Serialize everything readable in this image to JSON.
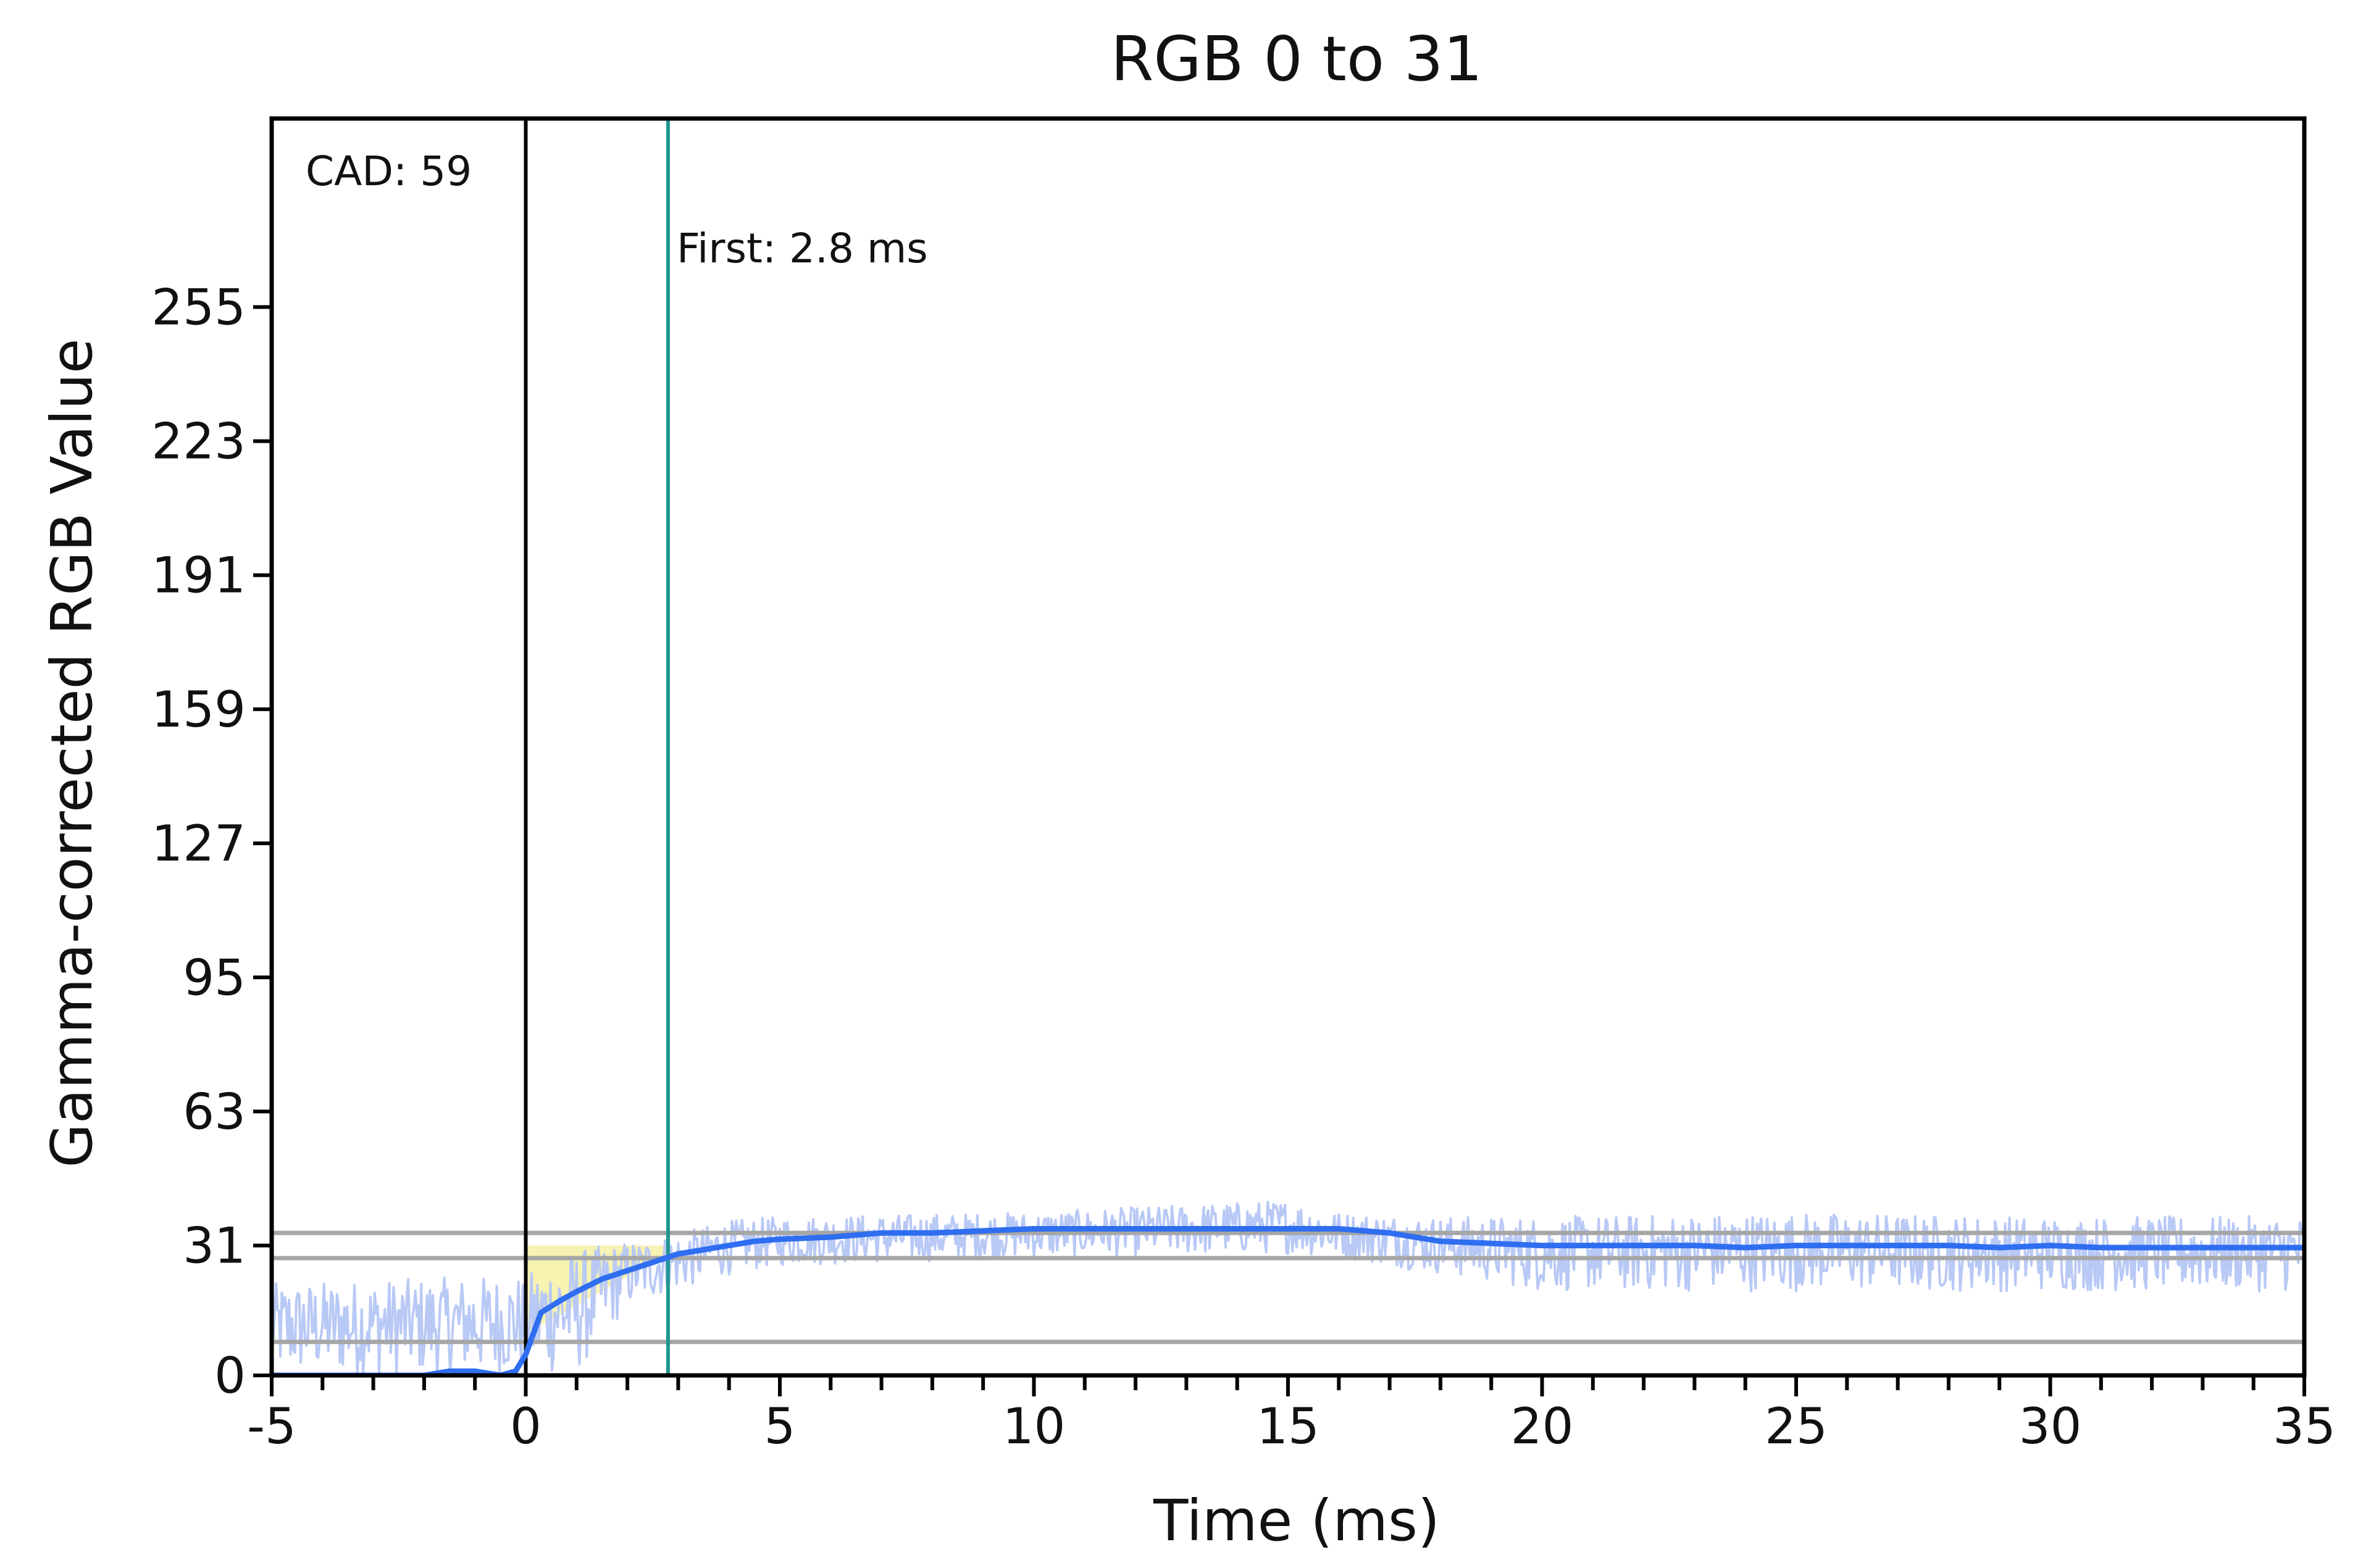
{
  "chart_data": {
    "type": "line",
    "title": "RGB 0 to 31",
    "xlabel": "Time (ms)",
    "ylabel": "Gamma-corrected RGB Value",
    "xlim": [
      -5,
      35
    ],
    "ylim": [
      0,
      300
    ],
    "x_ticks": [
      -5,
      0,
      5,
      10,
      15,
      20,
      25,
      30,
      35
    ],
    "y_ticks": [
      0,
      31,
      63,
      95,
      127,
      159,
      191,
      223,
      255
    ],
    "grid": false,
    "colors": {
      "smoothed": "#2f6ef0",
      "raw": "#b9c9f6",
      "highlight": "#f6f2a8",
      "start_line": "#000000",
      "first_line": "#1f9690",
      "threshold": "#a6a6a6"
    },
    "annotations": {
      "cad": "CAD: 59",
      "first": "First: 2.8 ms"
    },
    "markers": {
      "start_x": 0,
      "first_x": 2.8
    },
    "thresholds": [
      34,
      28,
      8
    ],
    "highlight_region": {
      "x_start": 0,
      "x_end": 2.8
    },
    "series": [
      {
        "role": "smoothed",
        "x": [
          -5,
          -4,
          -3,
          -2,
          -1.5,
          -1,
          -0.5,
          -0.2,
          0,
          0.3,
          0.7,
          1,
          1.5,
          2,
          2.5,
          3,
          3.5,
          4,
          4.5,
          5,
          6,
          7,
          8,
          9,
          10,
          11,
          12,
          13,
          14,
          15,
          16,
          17,
          18,
          19,
          20,
          21,
          22,
          23,
          24,
          25,
          26,
          27,
          28,
          29,
          30,
          31,
          32,
          33,
          34,
          35
        ],
        "y": [
          0,
          0,
          0,
          0,
          1,
          1,
          0,
          1,
          5,
          15,
          18,
          20,
          23,
          25,
          27,
          29,
          30,
          31,
          32,
          32.5,
          33,
          34,
          34,
          34.5,
          35,
          35,
          35,
          35,
          35,
          35,
          35,
          34,
          32,
          31.5,
          31,
          31,
          31,
          31,
          30.5,
          31,
          31,
          31,
          31,
          30.5,
          31,
          30.5,
          30.5,
          30.5,
          30.5,
          30.5
        ]
      },
      {
        "role": "raw",
        "x": [
          -5,
          0,
          0.5,
          1,
          1.5,
          2,
          3,
          4,
          5,
          10,
          15,
          16,
          18,
          20,
          25,
          30,
          35
        ],
        "y_low": [
          0,
          0,
          0,
          0,
          8,
          16,
          20,
          24,
          26,
          28,
          29,
          28,
          24,
          20,
          20,
          20,
          20
        ],
        "y_high": [
          22,
          24,
          28,
          30,
          31,
          32,
          34,
          37,
          38,
          39,
          42,
          39,
          38,
          38,
          39,
          38,
          38
        ]
      }
    ]
  }
}
